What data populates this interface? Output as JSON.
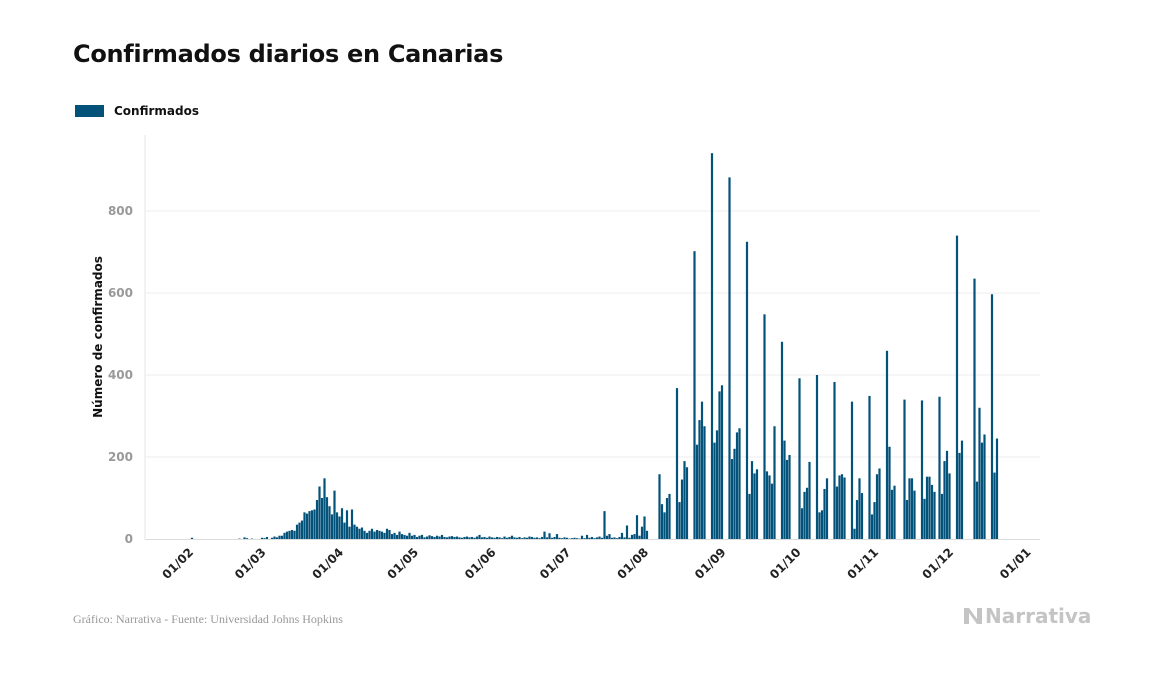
{
  "chart_data": {
    "type": "bar",
    "title": "Confirmados diarios en Canarias",
    "ylabel": "Número de confirmados",
    "xlabel": "",
    "legend": {
      "position": "top-left",
      "entries": [
        "Confirmados"
      ]
    },
    "grid": true,
    "ylim": [
      0,
      990
    ],
    "y_ticks": [
      0,
      200,
      400,
      600,
      800
    ],
    "x_tick_labels": [
      "01/02",
      "01/03",
      "01/04",
      "01/05",
      "01/06",
      "01/07",
      "01/08",
      "01/09",
      "01/10",
      "01/11",
      "01/12",
      "01/01"
    ],
    "x_tick_dates": [
      "2020-02-01",
      "2020-03-01",
      "2020-04-01",
      "2020-05-01",
      "2020-06-01",
      "2020-07-01",
      "2020-08-01",
      "2020-09-01",
      "2020-10-01",
      "2020-11-01",
      "2020-12-01",
      "2021-01-01"
    ],
    "x_start": "2020-02-01",
    "x_frequency": "daily",
    "series": [
      {
        "name": "Confirmados",
        "color": "#03527a",
        "values": [
          3,
          0,
          0,
          0,
          0,
          0,
          0,
          0,
          0,
          0,
          0,
          0,
          0,
          0,
          0,
          0,
          0,
          0,
          0,
          1,
          0,
          4,
          2,
          0,
          1,
          0,
          0,
          0,
          3,
          2,
          5,
          0,
          3,
          6,
          4,
          8,
          8,
          15,
          18,
          20,
          22,
          20,
          35,
          40,
          45,
          65,
          62,
          68,
          70,
          72,
          95,
          128,
          100,
          148,
          102,
          80,
          60,
          118,
          65,
          55,
          75,
          40,
          70,
          30,
          72,
          35,
          30,
          25,
          28,
          20,
          15,
          20,
          25,
          18,
          22,
          20,
          18,
          15,
          25,
          22,
          12,
          15,
          10,
          18,
          12,
          10,
          8,
          15,
          8,
          10,
          5,
          8,
          10,
          4,
          6,
          9,
          7,
          5,
          8,
          6,
          10,
          5,
          4,
          6,
          7,
          5,
          6,
          4,
          3,
          5,
          6,
          4,
          5,
          3,
          6,
          10,
          4,
          5,
          3,
          6,
          4,
          3,
          5,
          4,
          2,
          6,
          3,
          5,
          8,
          4,
          3,
          5,
          2,
          4,
          3,
          6,
          5,
          3,
          4,
          2,
          5,
          18,
          4,
          14,
          3,
          5,
          12,
          3,
          2,
          4,
          3,
          1,
          2,
          3,
          2,
          1,
          8,
          2,
          10,
          3,
          5,
          2,
          4,
          6,
          3,
          68,
          8,
          12,
          3,
          4,
          2,
          5,
          15,
          4,
          33,
          3,
          10,
          12,
          58,
          8,
          30,
          55,
          20,
          0,
          0,
          0,
          0,
          158,
          85,
          65,
          100,
          110,
          0,
          0,
          368,
          90,
          145,
          190,
          175,
          0,
          0,
          702,
          230,
          290,
          335,
          275,
          0,
          0,
          941,
          235,
          265,
          360,
          375,
          0,
          0,
          882,
          195,
          220,
          260,
          270,
          0,
          0,
          725,
          110,
          190,
          160,
          170,
          0,
          0,
          548,
          165,
          155,
          135,
          275,
          0,
          0,
          481,
          240,
          193,
          205,
          0,
          0,
          0,
          392,
          75,
          115,
          125,
          188,
          0,
          0,
          400,
          65,
          70,
          122,
          148,
          0,
          0,
          383,
          128,
          155,
          158,
          150,
          0,
          0,
          335,
          25,
          95,
          148,
          112,
          0,
          0,
          349,
          60,
          90,
          158,
          172,
          0,
          0,
          459,
          225,
          120,
          130,
          0,
          0,
          0,
          340,
          95,
          148,
          148,
          118,
          0,
          0,
          338,
          98,
          152,
          152,
          132,
          115,
          0,
          347,
          110,
          190,
          215,
          160,
          0,
          0,
          740,
          210,
          240,
          0,
          0,
          0,
          0,
          635,
          140,
          320,
          235,
          255,
          0,
          0,
          597,
          162,
          245
        ]
      }
    ]
  },
  "footer": {
    "source": "Gráfico: Narrativa - Fuente: Universidad Johns Hopkins"
  },
  "logo": {
    "text": "Narrativa"
  }
}
